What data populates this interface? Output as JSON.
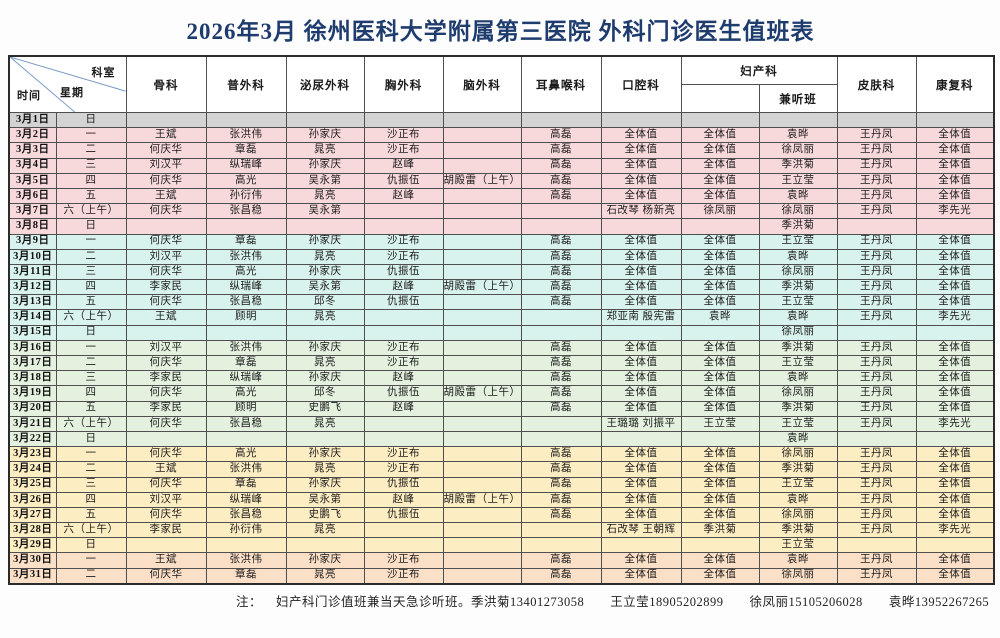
{
  "title": "2026年3月 徐州医科大学附属第三医院 外科门诊医生值班表",
  "header": {
    "corner": {
      "dept": "科室",
      "week": "星期",
      "time": "时间"
    },
    "columns": [
      "骨科",
      "普外科",
      "泌尿外科",
      "胸外科",
      "脑外科",
      "耳鼻喉科",
      "口腔科",
      "妇产科",
      "皮肤科",
      "康复科"
    ],
    "obgyn_sub": "兼听班"
  },
  "palette": {
    "gray": "#d3d3d3",
    "pink": "#f8d9db",
    "cyan": "#d8f2ed",
    "green": "#e3f1de",
    "yellow": "#fdedc2",
    "peach": "#fbdfc6"
  },
  "rows": [
    {
      "date": "3月1日",
      "week": "日",
      "color": "gray",
      "cells": [
        "",
        "",
        "",
        "",
        "",
        "",
        "",
        "",
        "",
        "",
        ""
      ]
    },
    {
      "date": "3月2日",
      "week": "一",
      "color": "pink",
      "cells": [
        "王斌",
        "张洪伟",
        "孙家庆",
        "沙正布",
        "",
        "高磊",
        "全体值",
        "全体值",
        "袁晔",
        "王丹凤",
        "全体值"
      ]
    },
    {
      "date": "3月3日",
      "week": "二",
      "color": "pink",
      "cells": [
        "何庆华",
        "章磊",
        "晁亮",
        "沙正布",
        "",
        "高磊",
        "全体值",
        "全体值",
        "徐凤丽",
        "王丹凤",
        "全体值"
      ]
    },
    {
      "date": "3月4日",
      "week": "三",
      "color": "pink",
      "cells": [
        "刘汉平",
        "纵瑞峰",
        "孙家庆",
        "赵峰",
        "",
        "高磊",
        "全体值",
        "全体值",
        "季洪菊",
        "王丹凤",
        "全体值"
      ]
    },
    {
      "date": "3月5日",
      "week": "四",
      "color": "pink",
      "cells": [
        "何庆华",
        "高光",
        "吴永第",
        "仇振伍",
        "胡殿雷（上午）",
        "高磊",
        "全体值",
        "全体值",
        "王立莹",
        "王丹凤",
        "全体值"
      ]
    },
    {
      "date": "3月6日",
      "week": "五",
      "color": "pink",
      "cells": [
        "王斌",
        "孙衍伟",
        "晁亮",
        "赵峰",
        "",
        "高磊",
        "全体值",
        "全体值",
        "袁晔",
        "王丹凤",
        "全体值"
      ]
    },
    {
      "date": "3月7日",
      "week": "六（上午）",
      "color": "pink",
      "cells": [
        "何庆华",
        "张昌稳",
        "吴永第",
        "",
        "",
        "",
        "石改琴 杨新亮",
        "徐凤丽",
        "徐凤丽",
        "王丹凤",
        "李先光"
      ]
    },
    {
      "date": "3月8日",
      "week": "日",
      "color": "pink",
      "cells": [
        "",
        "",
        "",
        "",
        "",
        "",
        "",
        "",
        "季洪菊",
        "",
        ""
      ]
    },
    {
      "date": "3月9日",
      "week": "一",
      "color": "cyan",
      "cells": [
        "何庆华",
        "章磊",
        "孙家庆",
        "沙正布",
        "",
        "高磊",
        "全体值",
        "全体值",
        "王立莹",
        "王丹凤",
        "全体值"
      ]
    },
    {
      "date": "3月10日",
      "week": "二",
      "color": "cyan",
      "cells": [
        "刘汉平",
        "张洪伟",
        "晁亮",
        "沙正布",
        "",
        "高磊",
        "全体值",
        "全体值",
        "袁晔",
        "王丹凤",
        "全体值"
      ]
    },
    {
      "date": "3月11日",
      "week": "三",
      "color": "cyan",
      "cells": [
        "何庆华",
        "高光",
        "孙家庆",
        "仇振伍",
        "",
        "高磊",
        "全体值",
        "全体值",
        "徐凤丽",
        "王丹凤",
        "全体值"
      ]
    },
    {
      "date": "3月12日",
      "week": "四",
      "color": "cyan",
      "cells": [
        "李家民",
        "纵瑞峰",
        "吴永第",
        "赵峰",
        "胡殿雷（上午）",
        "高磊",
        "全体值",
        "全体值",
        "季洪菊",
        "王丹凤",
        "全体值"
      ]
    },
    {
      "date": "3月13日",
      "week": "五",
      "color": "cyan",
      "cells": [
        "何庆华",
        "张昌稳",
        "邱冬",
        "仇振伍",
        "",
        "高磊",
        "全体值",
        "全体值",
        "王立莹",
        "王丹凤",
        "全体值"
      ]
    },
    {
      "date": "3月14日",
      "week": "六（上午）",
      "color": "cyan",
      "cells": [
        "王斌",
        "顾明",
        "晁亮",
        "",
        "",
        "",
        "郑亚南 殷宪雷",
        "袁晔",
        "袁晔",
        "王丹凤",
        "李先光"
      ]
    },
    {
      "date": "3月15日",
      "week": "日",
      "color": "cyan",
      "cells": [
        "",
        "",
        "",
        "",
        "",
        "",
        "",
        "",
        "徐凤丽",
        "",
        ""
      ]
    },
    {
      "date": "3月16日",
      "week": "一",
      "color": "green",
      "cells": [
        "刘汉平",
        "张洪伟",
        "孙家庆",
        "沙正布",
        "",
        "高磊",
        "全体值",
        "全体值",
        "季洪菊",
        "王丹凤",
        "全体值"
      ]
    },
    {
      "date": "3月17日",
      "week": "二",
      "color": "green",
      "cells": [
        "何庆华",
        "章磊",
        "晁亮",
        "沙正布",
        "",
        "高磊",
        "全体值",
        "全体值",
        "王立莹",
        "王丹凤",
        "全体值"
      ]
    },
    {
      "date": "3月18日",
      "week": "三",
      "color": "green",
      "cells": [
        "李家民",
        "纵瑞峰",
        "孙家庆",
        "赵峰",
        "",
        "高磊",
        "全体值",
        "全体值",
        "袁晔",
        "王丹凤",
        "全体值"
      ]
    },
    {
      "date": "3月19日",
      "week": "四",
      "color": "green",
      "cells": [
        "何庆华",
        "高光",
        "邱冬",
        "仇振伍",
        "胡殿雷（上午）",
        "高磊",
        "全体值",
        "全体值",
        "徐凤丽",
        "王丹凤",
        "全体值"
      ]
    },
    {
      "date": "3月20日",
      "week": "五",
      "color": "green",
      "cells": [
        "李家民",
        "顾明",
        "史鹏飞",
        "赵峰",
        "",
        "高磊",
        "全体值",
        "全体值",
        "季洪菊",
        "王丹凤",
        "全体值"
      ]
    },
    {
      "date": "3月21日",
      "week": "六（上午）",
      "color": "green",
      "cells": [
        "何庆华",
        "张昌稳",
        "晁亮",
        "",
        "",
        "",
        "王璐璐 刘振平",
        "王立莹",
        "王立莹",
        "王丹凤",
        "李先光"
      ]
    },
    {
      "date": "3月22日",
      "week": "日",
      "color": "green",
      "cells": [
        "",
        "",
        "",
        "",
        "",
        "",
        "",
        "",
        "袁晔",
        "",
        ""
      ]
    },
    {
      "date": "3月23日",
      "week": "一",
      "color": "yellow",
      "cells": [
        "何庆华",
        "高光",
        "孙家庆",
        "沙正布",
        "",
        "高磊",
        "全体值",
        "全体值",
        "徐凤丽",
        "王丹凤",
        "全体值"
      ]
    },
    {
      "date": "3月24日",
      "week": "二",
      "color": "yellow",
      "cells": [
        "王斌",
        "张洪伟",
        "晁亮",
        "沙正布",
        "",
        "高磊",
        "全体值",
        "全体值",
        "季洪菊",
        "王丹凤",
        "全体值"
      ]
    },
    {
      "date": "3月25日",
      "week": "三",
      "color": "yellow",
      "cells": [
        "何庆华",
        "章磊",
        "孙家庆",
        "仇振伍",
        "",
        "高磊",
        "全体值",
        "全体值",
        "王立莹",
        "王丹凤",
        "全体值"
      ]
    },
    {
      "date": "3月26日",
      "week": "四",
      "color": "yellow",
      "cells": [
        "刘汉平",
        "纵瑞峰",
        "吴永第",
        "赵峰",
        "胡殿雷（上午）",
        "高磊",
        "全体值",
        "全体值",
        "袁晔",
        "王丹凤",
        "全体值"
      ]
    },
    {
      "date": "3月27日",
      "week": "五",
      "color": "yellow",
      "cells": [
        "何庆华",
        "张昌稳",
        "史鹏飞",
        "仇振伍",
        "",
        "高磊",
        "全体值",
        "全体值",
        "徐凤丽",
        "王丹凤",
        "全体值"
      ]
    },
    {
      "date": "3月28日",
      "week": "六（上午）",
      "color": "yellow",
      "cells": [
        "李家民",
        "孙衍伟",
        "晁亮",
        "",
        "",
        "",
        "石改琴 王朝辉",
        "季洪菊",
        "季洪菊",
        "王丹凤",
        "李先光"
      ]
    },
    {
      "date": "3月29日",
      "week": "日",
      "color": "yellow",
      "cells": [
        "",
        "",
        "",
        "",
        "",
        "",
        "",
        "",
        "王立莹",
        "",
        ""
      ]
    },
    {
      "date": "3月30日",
      "week": "一",
      "color": "peach",
      "cells": [
        "王斌",
        "张洪伟",
        "孙家庆",
        "沙正布",
        "",
        "高磊",
        "全体值",
        "全体值",
        "袁晔",
        "王丹凤",
        "全体值"
      ]
    },
    {
      "date": "3月31日",
      "week": "二",
      "color": "peach",
      "cells": [
        "何庆华",
        "章磊",
        "晁亮",
        "沙正布",
        "",
        "高磊",
        "全体值",
        "全体值",
        "徐凤丽",
        "王丹凤",
        "全体值"
      ]
    }
  ],
  "footer": {
    "label": "注：",
    "text": "妇产科门诊值班兼当天急诊听班。季洪菊13401273058",
    "contacts": [
      "王立莹18905202899",
      "徐凤丽15105206028",
      "袁晔13952267265"
    ]
  }
}
